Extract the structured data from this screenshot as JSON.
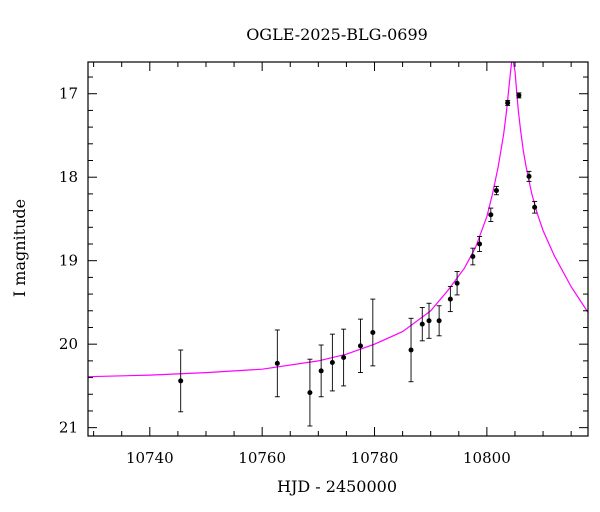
{
  "chart_data": {
    "type": "scatter",
    "title": "OGLE-2025-BLG-0699",
    "xlabel": "HJD - 2450000",
    "ylabel": "I magnitude",
    "xlim": [
      10729,
      10818
    ],
    "ylim": [
      21.1,
      16.62
    ],
    "y_inverted": true,
    "x_ticks": [
      10740,
      10760,
      10780,
      10800
    ],
    "y_ticks": [
      17,
      18,
      19,
      20,
      21
    ],
    "grid": false,
    "colors": {
      "model": "#ff00ff",
      "points": "#000000"
    },
    "points": [
      {
        "x": 10745.5,
        "y": 20.44,
        "err": 0.37
      },
      {
        "x": 10762.7,
        "y": 20.23,
        "err": 0.4
      },
      {
        "x": 10768.5,
        "y": 20.58,
        "err": 0.4
      },
      {
        "x": 10770.5,
        "y": 20.32,
        "err": 0.31
      },
      {
        "x": 10772.5,
        "y": 20.22,
        "err": 0.34
      },
      {
        "x": 10774.5,
        "y": 20.16,
        "err": 0.34
      },
      {
        "x": 10777.5,
        "y": 20.02,
        "err": 0.32
      },
      {
        "x": 10779.7,
        "y": 19.86,
        "err": 0.4
      },
      {
        "x": 10786.5,
        "y": 20.07,
        "err": 0.38
      },
      {
        "x": 10788.5,
        "y": 19.76,
        "err": 0.2
      },
      {
        "x": 10789.7,
        "y": 19.72,
        "err": 0.21
      },
      {
        "x": 10791.5,
        "y": 19.72,
        "err": 0.18
      },
      {
        "x": 10793.5,
        "y": 19.46,
        "err": 0.15
      },
      {
        "x": 10794.7,
        "y": 19.27,
        "err": 0.14
      },
      {
        "x": 10797.5,
        "y": 18.95,
        "err": 0.1
      },
      {
        "x": 10798.7,
        "y": 18.8,
        "err": 0.09
      },
      {
        "x": 10800.7,
        "y": 18.45,
        "err": 0.08
      },
      {
        "x": 10801.7,
        "y": 18.16,
        "err": 0.05
      },
      {
        "x": 10803.7,
        "y": 17.11,
        "err": 0.03
      },
      {
        "x": 10805.7,
        "y": 17.02,
        "err": 0.03
      },
      {
        "x": 10807.5,
        "y": 17.99,
        "err": 0.06
      },
      {
        "x": 10808.5,
        "y": 18.36,
        "err": 0.07
      }
    ],
    "model": {
      "x": [
        10729,
        10740,
        10750,
        10760,
        10770,
        10775,
        10780,
        10785,
        10790,
        10793,
        10796,
        10798,
        10800,
        10801,
        10802,
        10803,
        10803.5,
        10804,
        10804.4,
        10804.7,
        10805,
        10805.3,
        10805.6,
        10806,
        10806.5,
        10807,
        10808,
        10809,
        10810,
        10812,
        10815,
        10818
      ],
      "y": [
        20.39,
        20.37,
        20.34,
        20.3,
        20.2,
        20.12,
        20.0,
        19.85,
        19.6,
        19.36,
        19.09,
        18.84,
        18.47,
        18.2,
        17.88,
        17.48,
        17.21,
        16.88,
        16.62,
        16.62,
        16.73,
        16.98,
        17.2,
        17.44,
        17.69,
        17.88,
        18.2,
        18.44,
        18.64,
        18.94,
        19.31,
        19.62
      ]
    }
  }
}
